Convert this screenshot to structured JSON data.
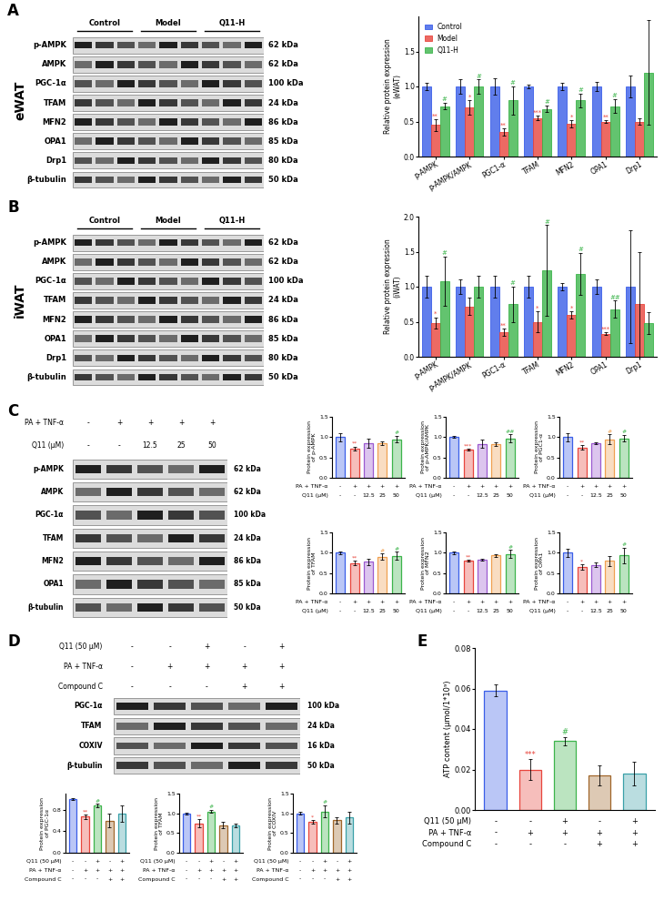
{
  "panel_labels": [
    "A",
    "B",
    "C",
    "D",
    "E"
  ],
  "blots": [
    {
      "panel": "A",
      "side_label": "eWAT",
      "groups": [
        "Control",
        "Model",
        "Q11-H"
      ],
      "lanes_per_group": 3,
      "proteins": [
        {
          "name": "p-AMPK",
          "kda": "62 kDa"
        },
        {
          "name": "AMPK",
          "kda": "62 kDa"
        },
        {
          "name": "PGC-1α",
          "kda": "100 kDa"
        },
        {
          "name": "TFAM",
          "kda": "24 kDa"
        },
        {
          "name": "MFN2",
          "kda": "86 kDa"
        },
        {
          "name": "OPA1",
          "kda": "85 kDa"
        },
        {
          "name": "Drp1",
          "kda": "80 kDa"
        },
        {
          "name": "β-tubulin",
          "kda": "50 kDa"
        }
      ]
    },
    {
      "panel": "B",
      "side_label": "iWAT",
      "groups": [
        "Control",
        "Model",
        "Q11-H"
      ],
      "lanes_per_group": 3,
      "proteins": [
        {
          "name": "p-AMPK",
          "kda": "62 kDa"
        },
        {
          "name": "AMPK",
          "kda": "62 kDa"
        },
        {
          "name": "PGC-1α",
          "kda": "100 kDa"
        },
        {
          "name": "TFAM",
          "kda": "24 kDa"
        },
        {
          "name": "MFN2",
          "kda": "86 kDa"
        },
        {
          "name": "OPA1",
          "kda": "85 kDa"
        },
        {
          "name": "Drp1",
          "kda": "80 kDa"
        },
        {
          "name": "β-tubulin",
          "kda": "50 kDa"
        }
      ]
    },
    {
      "panel": "C",
      "header_rows": [
        {
          "label": "PA + TNF-α",
          "values": [
            "-",
            "+",
            "+",
            "+",
            "+"
          ]
        },
        {
          "label": "Q11 (μM)",
          "values": [
            "-",
            "-",
            "12.5",
            "25",
            "50"
          ]
        }
      ],
      "proteins": [
        {
          "name": "p-AMPK",
          "kda": "62 kDa"
        },
        {
          "name": "AMPK",
          "kda": "62 kDa"
        },
        {
          "name": "PGC-1α",
          "kda": "100 kDa"
        },
        {
          "name": "TFAM",
          "kda": "24 kDa"
        },
        {
          "name": "MFN2",
          "kda": "86 kDa"
        },
        {
          "name": "OPA1",
          "kda": "85 kDa"
        },
        {
          "name": "β-tubulin",
          "kda": "50 kDa"
        }
      ]
    },
    {
      "panel": "D",
      "header_rows": [
        {
          "label": "Q11 (50 μM)",
          "values": [
            "-",
            "-",
            "+",
            "-",
            "+"
          ]
        },
        {
          "label": "PA + TNF-α",
          "values": [
            "-",
            "+",
            "+",
            "+",
            "+"
          ]
        },
        {
          "label": "Compound C",
          "values": [
            "-",
            "-",
            "-",
            "+",
            "+"
          ]
        }
      ],
      "proteins": [
        {
          "name": "PGC-1α",
          "kda": "100 kDa"
        },
        {
          "name": "TFAM",
          "kda": "24 kDa"
        },
        {
          "name": "COXIV",
          "kda": "16 kDa"
        },
        {
          "name": "β-tubulin",
          "kda": "50 kDa"
        }
      ]
    }
  ],
  "chart_data": [
    {
      "panel": "A",
      "type": "grouped_bar",
      "ylabel": "Relative protein expression\n(eWAT)",
      "categories": [
        "p-AMPK",
        "p-AMPK/AMPK",
        "PGC1-α",
        "TFAM",
        "MFN2",
        "OPA1",
        "Drp1"
      ],
      "ylim": [
        0,
        2.0
      ],
      "yticks": [
        {
          "value": 0,
          "label": "0.0"
        },
        0.5,
        {
          "value": 1,
          "label": "1.0"
        },
        1.5
      ],
      "legend": "upper left",
      "series": [
        {
          "name": "Control",
          "color": "#3a5ee8",
          "values": [
            1.0,
            1.0,
            1.0,
            1.0,
            1.0,
            1.0,
            1.0
          ],
          "errors": [
            0.05,
            0.1,
            0.12,
            0.03,
            0.05,
            0.06,
            0.15
          ],
          "annotations": [
            null,
            null,
            null,
            null,
            null,
            null,
            null
          ]
        },
        {
          "name": "Model",
          "color": "#e8453c",
          "values": [
            0.45,
            0.7,
            0.35,
            0.55,
            0.47,
            0.5,
            0.5
          ],
          "errors": [
            0.08,
            0.1,
            0.05,
            0.03,
            0.05,
            0.02,
            0.05
          ],
          "annotations": [
            "**",
            "*",
            "**",
            "***",
            "*",
            "**",
            null
          ]
        },
        {
          "name": "Q11-H",
          "color": "#3cb44b",
          "values": [
            0.72,
            1.0,
            0.8,
            0.68,
            0.8,
            0.72,
            1.2
          ],
          "errors": [
            0.05,
            0.1,
            0.2,
            0.05,
            0.1,
            0.1,
            0.75
          ],
          "annotations": [
            "#",
            "#",
            "#",
            "#",
            "#",
            "#",
            null
          ]
        }
      ]
    },
    {
      "panel": "B",
      "type": "grouped_bar",
      "ylabel": "Relative protein expression\n(iWAT)",
      "categories": [
        "p-AMPK",
        "p-AMPK/AMPK",
        "PGC1-α",
        "TFAM",
        "MFN2",
        "OPA1",
        "Drp1"
      ],
      "ylim": [
        0,
        2.0
      ],
      "yticks": [
        {
          "value": 0,
          "label": "0.0"
        },
        0.5,
        {
          "value": 1,
          "label": "1.0"
        },
        1.5,
        {
          "value": 2,
          "label": "2.0"
        }
      ],
      "series": [
        {
          "color": "#3a5ee8",
          "values": [
            1.0,
            1.0,
            1.0,
            1.0,
            1.0,
            1.0,
            1.0
          ],
          "errors": [
            0.15,
            0.1,
            0.15,
            0.15,
            0.05,
            0.1,
            0.8
          ],
          "annotations": [
            null,
            null,
            null,
            null,
            null,
            null,
            null
          ]
        },
        {
          "color": "#e8453c",
          "values": [
            0.48,
            0.72,
            0.35,
            0.5,
            0.6,
            0.33,
            0.75
          ],
          "errors": [
            0.08,
            0.12,
            0.05,
            0.15,
            0.05,
            0.02,
            0.75
          ],
          "annotations": [
            "*",
            null,
            "**",
            "*",
            "*",
            "***",
            null
          ]
        },
        {
          "color": "#3cb44b",
          "values": [
            1.08,
            1.0,
            0.75,
            1.23,
            1.18,
            0.68,
            0.48
          ],
          "errors": [
            0.35,
            0.15,
            0.25,
            0.65,
            0.3,
            0.12,
            0.15
          ],
          "annotations": [
            "#",
            null,
            "#",
            "#",
            "#",
            "##",
            null
          ]
        }
      ]
    },
    {
      "panel": "C",
      "type": "bar",
      "ylabel": "Protein expression\nof p-AMPK",
      "ylim": [
        0,
        1.5
      ],
      "yticks": [
        {
          "value": 0,
          "label": "0.0"
        },
        0.5,
        {
          "value": 1,
          "label": "1.0"
        },
        1.5
      ],
      "colors": [
        "#3a5ee8",
        "#e8453c",
        "#9b59d0",
        "#f0a050",
        "#3cb44b"
      ],
      "values": [
        1.0,
        0.72,
        0.85,
        0.85,
        0.95
      ],
      "errors": [
        0.1,
        0.05,
        0.12,
        0.04,
        0.08
      ],
      "annotations": [
        null,
        "**",
        null,
        null,
        "#"
      ],
      "conditions": [
        {
          "label": "PA + TNF-α",
          "values": [
            "-",
            "+",
            "+",
            "+",
            "+"
          ]
        },
        {
          "label": "Q11 (μM)",
          "values": [
            "-",
            "-",
            "12.5",
            "25",
            "50"
          ]
        }
      ]
    },
    {
      "panel": "C",
      "type": "bar",
      "ylabel": "Protein expression\nof p-AMPK/AMPK",
      "ylim": [
        0,
        1.5
      ],
      "yticks": [
        {
          "value": 0,
          "label": "0.0"
        },
        0.5,
        {
          "value": 1,
          "label": "1.0"
        },
        1.5
      ],
      "colors": [
        "#3a5ee8",
        "#e8453c",
        "#9b59d0",
        "#f0a050",
        "#3cb44b"
      ],
      "values": [
        1.0,
        0.7,
        0.83,
        0.83,
        0.97
      ],
      "errors": [
        0.02,
        0.02,
        0.1,
        0.05,
        0.1
      ],
      "annotations": [
        null,
        "***",
        null,
        null,
        "##"
      ],
      "conditions": [
        {
          "label": "PA + TNF-α",
          "values": [
            "-",
            "+",
            "+",
            "+",
            "+"
          ]
        },
        {
          "label": "Q11 (μM)",
          "values": [
            "-",
            "-",
            "12.5",
            "25",
            "50"
          ]
        }
      ]
    },
    {
      "panel": "C",
      "type": "bar",
      "ylabel": "Protein expression\nof PGC1-α",
      "ylim": [
        0,
        1.5
      ],
      "yticks": [
        {
          "value": 0,
          "label": "0.0"
        },
        0.5,
        {
          "value": 1,
          "label": "1.0"
        },
        1.5
      ],
      "colors": [
        "#3a5ee8",
        "#e8453c",
        "#9b59d0",
        "#f0a050",
        "#3cb44b"
      ],
      "values": [
        1.0,
        0.75,
        0.85,
        0.95,
        0.97
      ],
      "errors": [
        0.1,
        0.05,
        0.02,
        0.12,
        0.08
      ],
      "annotations": [
        null,
        "**",
        null,
        "#",
        "#"
      ],
      "conditions": [
        {
          "label": "PA + TNF-α",
          "values": [
            "-",
            "+",
            "+",
            "+",
            "+"
          ]
        },
        {
          "label": "Q11 (μM)",
          "values": [
            "-",
            "-",
            "12.5",
            "25",
            "50"
          ]
        }
      ]
    },
    {
      "panel": "C",
      "type": "bar",
      "ylabel": "Protein expression\nof TFAM",
      "ylim": [
        0,
        1.5
      ],
      "yticks": [
        {
          "value": 0,
          "label": "0.0"
        },
        0.5,
        {
          "value": 1,
          "label": "1.0"
        },
        1.5
      ],
      "colors": [
        "#3a5ee8",
        "#e8453c",
        "#9b59d0",
        "#f0a050",
        "#3cb44b"
      ],
      "values": [
        1.0,
        0.75,
        0.78,
        0.9,
        0.92
      ],
      "errors": [
        0.03,
        0.05,
        0.08,
        0.08,
        0.1
      ],
      "annotations": [
        null,
        "**",
        null,
        "#",
        "#"
      ],
      "conditions": [
        {
          "label": "PA + TNF-α",
          "values": [
            "-",
            "+",
            "+",
            "+",
            "+"
          ]
        },
        {
          "label": "Q11 (μM)",
          "values": [
            "-",
            "-",
            "12.5",
            "25",
            "50"
          ]
        }
      ]
    },
    {
      "panel": "C",
      "type": "bar",
      "ylabel": "Protein expression\nof MFN2",
      "ylim": [
        0,
        1.5
      ],
      "yticks": [
        {
          "value": 0,
          "label": "0.0"
        },
        0.5,
        {
          "value": 1,
          "label": "1.0"
        },
        1.5
      ],
      "colors": [
        "#3a5ee8",
        "#e8453c",
        "#9b59d0",
        "#f0a050",
        "#3cb44b"
      ],
      "values": [
        1.0,
        0.8,
        0.83,
        0.93,
        0.97
      ],
      "errors": [
        0.03,
        0.02,
        0.02,
        0.04,
        0.1
      ],
      "annotations": [
        null,
        "**",
        null,
        null,
        "#"
      ],
      "conditions": [
        {
          "label": "PA + TNF-α",
          "values": [
            "-",
            "+",
            "+",
            "+",
            "+"
          ]
        },
        {
          "label": "Q11 (μM)",
          "values": [
            "-",
            "-",
            "12.5",
            "25",
            "50"
          ]
        }
      ]
    },
    {
      "panel": "C",
      "type": "bar",
      "ylabel": "Protein expression\nof OPA1",
      "ylim": [
        0,
        1.5
      ],
      "yticks": [
        {
          "value": 0,
          "label": "0.0"
        },
        0.5,
        {
          "value": 1,
          "label": "1.0"
        },
        1.5
      ],
      "colors": [
        "#3a5ee8",
        "#e8453c",
        "#9b59d0",
        "#f0a050",
        "#3cb44b"
      ],
      "values": [
        1.0,
        0.65,
        0.7,
        0.8,
        0.93
      ],
      "errors": [
        0.1,
        0.06,
        0.06,
        0.12,
        0.2
      ],
      "annotations": [
        null,
        "*",
        null,
        null,
        "#"
      ],
      "conditions": [
        {
          "label": "PA + TNF-α",
          "values": [
            "-",
            "+",
            "+",
            "+",
            "+"
          ]
        },
        {
          "label": "Q11 (μM)",
          "values": [
            "-",
            "-",
            "12.5",
            "25",
            "50"
          ]
        }
      ]
    },
    {
      "panel": "D",
      "type": "bar",
      "ylabel": "Protein expression\nof PGC-1α",
      "ylim": [
        0,
        1.1
      ],
      "yticks": [
        {
          "value": 0,
          "label": "0.0"
        },
        0.4,
        0.8
      ],
      "colors": [
        "#3a5ee8",
        "#e8453c",
        "#3cb44b",
        "#a0662a",
        "#3aa0a8"
      ],
      "values": [
        1.0,
        0.67,
        0.88,
        0.6,
        0.73
      ],
      "errors": [
        0.02,
        0.04,
        0.03,
        0.12,
        0.15
      ],
      "annotations": [
        null,
        "**",
        "#",
        null,
        null
      ],
      "conditions": [
        {
          "label": "Q11 (50 μM)",
          "values": [
            "-",
            "-",
            "+",
            "-",
            "+"
          ]
        },
        {
          "label": "PA + TNF-α",
          "values": [
            "-",
            "+",
            "+",
            "+",
            "+"
          ]
        },
        {
          "label": "Compound C",
          "values": [
            "-",
            "-",
            "-",
            "+",
            "+"
          ]
        }
      ]
    },
    {
      "panel": "D",
      "type": "bar",
      "ylabel": "Protein expression\nof TFAM",
      "ylim": [
        0,
        1.5
      ],
      "yticks": [
        {
          "value": 0,
          "label": "0.0"
        },
        0.5,
        {
          "value": 1,
          "label": "1.0"
        },
        1.5
      ],
      "colors": [
        "#3a5ee8",
        "#e8453c",
        "#3cb44b",
        "#a0662a",
        "#3aa0a8"
      ],
      "values": [
        1.0,
        0.75,
        1.05,
        0.7,
        0.7
      ],
      "errors": [
        0.02,
        0.1,
        0.04,
        0.08,
        0.05
      ],
      "annotations": [
        null,
        "**",
        "#",
        null,
        null
      ],
      "conditions": [
        {
          "label": "Q11 (50 μM)",
          "values": [
            "-",
            "-",
            "+",
            "-",
            "+"
          ]
        },
        {
          "label": "PA + TNF-α",
          "values": [
            "-",
            "+",
            "+",
            "+",
            "+"
          ]
        },
        {
          "label": "Compound C",
          "values": [
            "-",
            "-",
            "-",
            "+",
            "+"
          ]
        }
      ]
    },
    {
      "panel": "D",
      "type": "bar",
      "ylabel": "Protein expression\nof COXIV",
      "ylim": [
        0,
        1.5
      ],
      "yticks": [
        {
          "value": 0,
          "label": "0.0"
        },
        0.5,
        {
          "value": 1,
          "label": "1.0"
        },
        1.5
      ],
      "colors": [
        "#3a5ee8",
        "#e8453c",
        "#3cb44b",
        "#a0662a",
        "#3aa0a8"
      ],
      "values": [
        1.0,
        0.78,
        1.05,
        0.82,
        0.9
      ],
      "errors": [
        0.04,
        0.05,
        0.15,
        0.08,
        0.15
      ],
      "annotations": [
        null,
        "*",
        "#",
        null,
        null
      ],
      "conditions": [
        {
          "label": "Q11 (50 μM)",
          "values": [
            "-",
            "-",
            "+",
            "-",
            "+"
          ]
        },
        {
          "label": "PA + TNF-α",
          "values": [
            "-",
            "+",
            "+",
            "+",
            "+"
          ]
        },
        {
          "label": "Compound C",
          "values": [
            "-",
            "-",
            "-",
            "+",
            "+"
          ]
        }
      ]
    },
    {
      "panel": "E",
      "type": "bar",
      "ylabel": "ATP content (μmol/1*10⁹)",
      "ylim": [
        0,
        0.08
      ],
      "yticks": [
        {
          "value": 0,
          "label": "0.00"
        },
        0.02,
        0.04,
        0.06,
        0.08
      ],
      "colors": [
        "#3a5ee8",
        "#e8453c",
        "#3cb44b",
        "#a0662a",
        "#3aa0a8"
      ],
      "values": [
        0.059,
        0.02,
        0.034,
        0.017,
        0.018
      ],
      "errors": [
        0.003,
        0.005,
        0.002,
        0.005,
        0.006
      ],
      "annotations": [
        null,
        "***",
        "#",
        null,
        null
      ],
      "conditions": [
        {
          "label": "Q11 (50 μM)",
          "values": [
            "-",
            "-",
            "+",
            "-",
            "+"
          ]
        },
        {
          "label": "PA + TNF-α",
          "values": [
            "-",
            "+",
            "+",
            "+",
            "+"
          ]
        },
        {
          "label": "Compound C",
          "values": [
            "-",
            "-",
            "-",
            "+",
            "+"
          ]
        }
      ]
    }
  ]
}
